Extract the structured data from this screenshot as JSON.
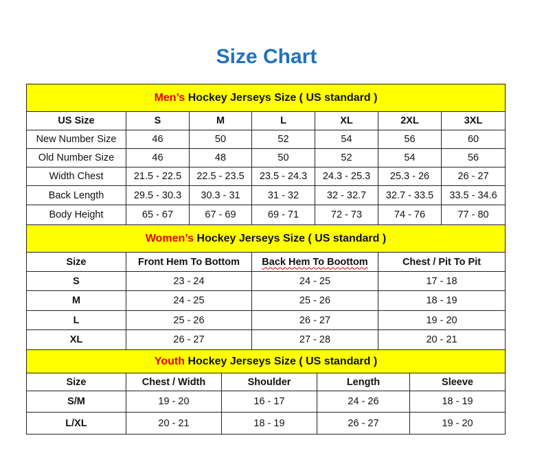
{
  "title": "Size Chart",
  "colors": {
    "title": "#1f72bd",
    "header_bg": "#ffff00",
    "highlight": "#e00000"
  },
  "men": {
    "heading_highlight": "Men’s",
    "heading_rest": " Hockey Jerseys Size ( US standard )",
    "columns": [
      "US Size",
      "S",
      "M",
      "L",
      "XL",
      "2XL",
      "3XL"
    ],
    "rows": [
      [
        "New Number Size",
        "46",
        "50",
        "52",
        "54",
        "56",
        "60"
      ],
      [
        "Old Number Size",
        "46",
        "48",
        "50",
        "52",
        "54",
        "56"
      ],
      [
        "Width Chest",
        "21.5 - 22.5",
        "22.5 - 23.5",
        "23.5 - 24.3",
        "24.3 - 25.3",
        "25.3 - 26",
        "26 - 27"
      ],
      [
        "Back Length",
        "29.5 - 30.3",
        "30.3 - 31",
        "31 - 32",
        "32 - 32.7",
        "32.7 - 33.5",
        "33.5 - 34.6"
      ],
      [
        "Body Height",
        "65 - 67",
        "67 - 69",
        "69 - 71",
        "72 - 73",
        "74 - 76",
        "77 - 80"
      ]
    ]
  },
  "women": {
    "heading_highlight": "Women’s",
    "heading_rest": " Hockey Jerseys Size ( US standard )",
    "columns": [
      "Size",
      "Front Hem To Bottom",
      "Back Hem To Boottom",
      "Chest / Pit To Pit"
    ],
    "rows": [
      [
        "S",
        "23 - 24",
        "24 - 25",
        "17 - 18"
      ],
      [
        "M",
        "24 - 25",
        "25 - 26",
        "18 - 19"
      ],
      [
        "L",
        "25 - 26",
        "26 - 27",
        "19 - 20"
      ],
      [
        "XL",
        "26 - 27",
        "27 - 28",
        "20 - 21"
      ]
    ]
  },
  "youth": {
    "heading_highlight": "Youth",
    "heading_rest": " Hockey Jerseys Size ( US standard )",
    "columns": [
      "Size",
      "Chest / Width",
      "Shoulder",
      "Length",
      "Sleeve"
    ],
    "rows": [
      [
        "S/M",
        "19 - 20",
        "16 - 17",
        "24 - 26",
        "18 - 19"
      ],
      [
        "L/XL",
        "20 - 21",
        "18 - 19",
        "26 - 27",
        "19 - 20"
      ]
    ]
  }
}
